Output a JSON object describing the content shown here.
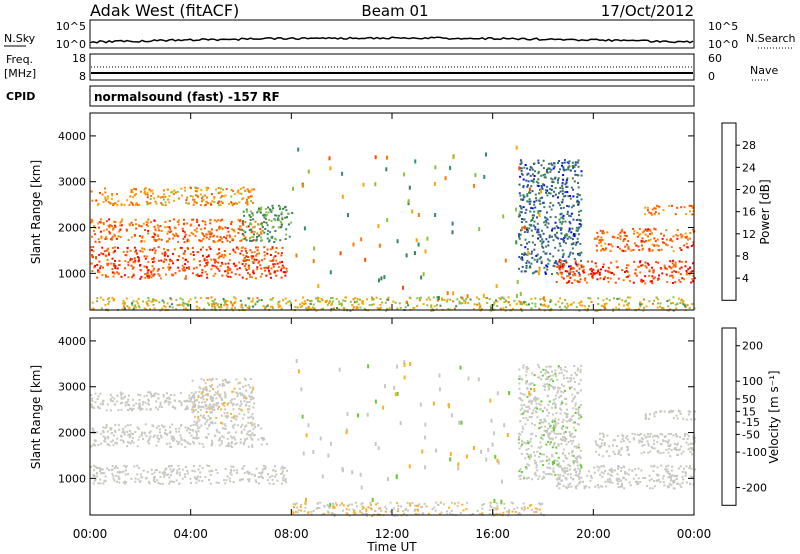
{
  "header": {
    "station": "Adak West (fitACF)",
    "beam": "Beam 01",
    "date": "17/Oct/2012"
  },
  "summary_panels": {
    "nsky_label": "N.Sky",
    "nsearch_label": "N.Search",
    "freq_label": "Freq.",
    "freq_unit": "[MHz]",
    "nave_label": "Nave",
    "cpid_label": "CPID",
    "cpid_text": "normalsound (fast) -157 RF",
    "noise_ticks": [
      "10^5",
      "10^0"
    ],
    "freq_ticks": [
      "18",
      "8"
    ],
    "nave_ticks": [
      "60",
      "0"
    ]
  },
  "colors": {
    "power_scale": [
      "#0000ff",
      "#2a4fa0",
      "#3d7a5a",
      "#2f8f60",
      "#8fbf40",
      "#ffa500",
      "#ff7a00",
      "#ff4a00",
      "#ff0000"
    ],
    "velocity_scale": [
      "#ff0000",
      "#ff4a00",
      "#ff8c00",
      "#ffb020",
      "#c8c8c0",
      "#c8c8c0",
      "#66cc33",
      "#2e8b57",
      "#3a7a6a",
      "#1a3fb0"
    ]
  },
  "chart_data": [
    {
      "type": "heatmap",
      "name": "power",
      "ylabel": "Slant Range [km]",
      "xlabel": "",
      "x_range_hours": [
        0,
        24
      ],
      "ylim": [
        200,
        4500
      ],
      "x_ticks": [
        "00:00",
        "04:00",
        "08:00",
        "12:00",
        "16:00",
        "20:00",
        "00:00"
      ],
      "y_ticks": [
        1000,
        2000,
        3000,
        4000
      ],
      "colorbar": {
        "label": "Power [dB]",
        "ticks": [
          4,
          8,
          12,
          16,
          20,
          24,
          28
        ],
        "range": [
          0,
          32
        ]
      },
      "bands": [
        {
          "start_h": 0.0,
          "end_h": 7.8,
          "range_start_km": 900,
          "range_end_km": 1600,
          "power_db": 28
        },
        {
          "start_h": 0.0,
          "end_h": 6.8,
          "range_start_km": 1700,
          "range_end_km": 2200,
          "power_db": 26
        },
        {
          "start_h": 0.0,
          "end_h": 6.5,
          "range_start_km": 2500,
          "range_end_km": 2900,
          "power_db": 22
        },
        {
          "start_h": 6.0,
          "end_h": 8.0,
          "range_start_km": 1700,
          "range_end_km": 2500,
          "power_db": 12
        },
        {
          "start_h": 17.0,
          "end_h": 19.5,
          "range_start_km": 1000,
          "range_end_km": 3500,
          "power_db": 6
        },
        {
          "start_h": 18.5,
          "end_h": 24.0,
          "range_start_km": 800,
          "range_end_km": 1300,
          "power_db": 28
        },
        {
          "start_h": 20.0,
          "end_h": 24.0,
          "range_start_km": 1500,
          "range_end_km": 2000,
          "power_db": 26
        },
        {
          "start_h": 22.0,
          "end_h": 24.0,
          "range_start_km": 2300,
          "range_end_km": 2500,
          "power_db": 24
        },
        {
          "start_h": 0.0,
          "end_h": 24.0,
          "range_start_km": 200,
          "range_end_km": 500,
          "power_db": 18
        }
      ]
    },
    {
      "type": "heatmap",
      "name": "velocity",
      "ylabel": "Slant Range [km]",
      "xlabel": "Time UT",
      "x_range_hours": [
        0,
        24
      ],
      "ylim": [
        200,
        4500
      ],
      "x_ticks": [
        "00:00",
        "04:00",
        "08:00",
        "12:00",
        "16:00",
        "20:00",
        "00:00"
      ],
      "y_ticks": [
        1000,
        2000,
        3000,
        4000
      ],
      "colorbar": {
        "label": "Velocity [m s⁻¹]",
        "ticks": [
          200,
          100,
          50,
          15,
          -15,
          -50,
          -100,
          -200
        ],
        "range": [
          -250,
          250
        ]
      },
      "bands": [
        {
          "start_h": 0.0,
          "end_h": 7.8,
          "range_start_km": 900,
          "range_end_km": 1300,
          "velocity": 0
        },
        {
          "start_h": 0.0,
          "end_h": 7.0,
          "range_start_km": 1700,
          "range_end_km": 2200,
          "velocity": 0
        },
        {
          "start_h": 0.0,
          "end_h": 6.5,
          "range_start_km": 2500,
          "range_end_km": 2900,
          "velocity": 0
        },
        {
          "start_h": 4.0,
          "end_h": 6.5,
          "range_start_km": 2200,
          "range_end_km": 3200,
          "velocity": -30
        },
        {
          "start_h": 17.0,
          "end_h": 19.5,
          "range_start_km": 1000,
          "range_end_km": 3500,
          "velocity": 30
        },
        {
          "start_h": 18.5,
          "end_h": 24.0,
          "range_start_km": 800,
          "range_end_km": 1300,
          "velocity": 0
        },
        {
          "start_h": 20.0,
          "end_h": 24.0,
          "range_start_km": 1500,
          "range_end_km": 2000,
          "velocity": 0
        },
        {
          "start_h": 22.0,
          "end_h": 24.0,
          "range_start_km": 2300,
          "range_end_km": 2500,
          "velocity": 0
        },
        {
          "start_h": 8.0,
          "end_h": 18.0,
          "range_start_km": 200,
          "range_end_km": 500,
          "velocity": -40
        }
      ]
    }
  ]
}
